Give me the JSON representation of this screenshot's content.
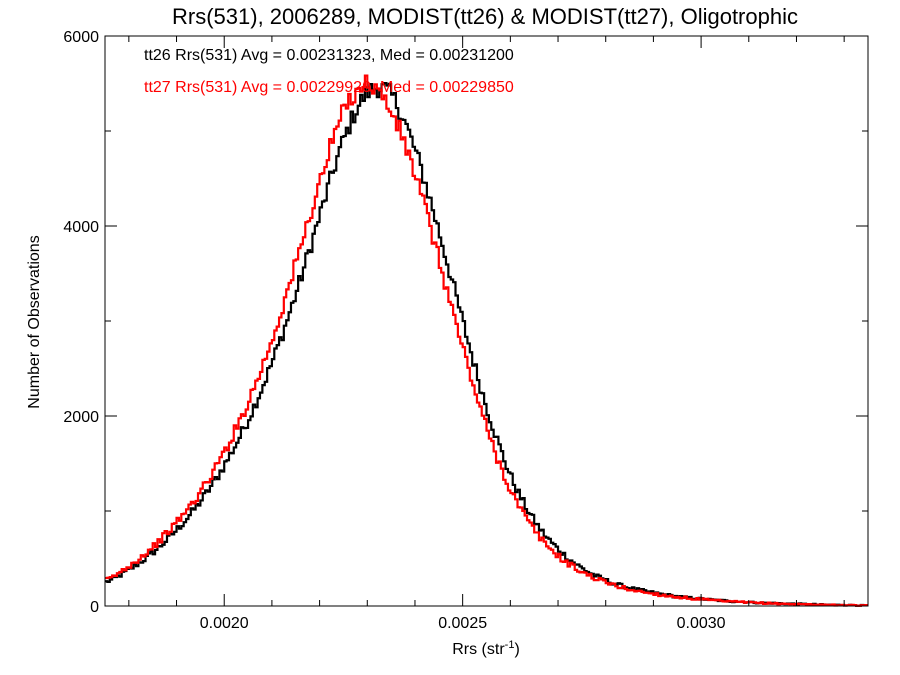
{
  "chart_data": {
    "type": "line",
    "step": true,
    "title": "Rrs(531), 2006289, MODIST(tt26) & MODIST(tt27), Oligotrophic",
    "xlabel": "Rrs (str",
    "xlabel_sup": "-1",
    "xlabel_close": ")",
    "ylabel": "Number of Observations",
    "xlim": [
      0.00175,
      0.00335
    ],
    "ylim": [
      0,
      6000
    ],
    "x_ticks": [
      0.002,
      0.0025,
      0.003
    ],
    "x_tick_labels": [
      "0.0020",
      "0.0025",
      "0.0030"
    ],
    "x_minor_step": 0.0001,
    "y_ticks": [
      0,
      2000,
      4000,
      6000
    ],
    "y_tick_labels": [
      "0",
      "2000",
      "4000",
      "6000"
    ],
    "y_minor_step": 1000,
    "grid": false,
    "annotations": [
      {
        "text": "tt26 Rrs(531) Avg = 0.00231323, Med = 0.00231200",
        "color": "#000000"
      },
      {
        "text": "tt27 Rrs(531) Avg = 0.00229920, Med = 0.00229850",
        "color": "#ff0000"
      }
    ],
    "series": [
      {
        "color": "#000000",
        "x": [
          0.00175,
          0.0018,
          0.00185,
          0.0019,
          0.00195,
          0.002,
          0.00205,
          0.0021,
          0.00215,
          0.0022,
          0.00225,
          0.0023,
          0.00235,
          0.0024,
          0.00245,
          0.0025,
          0.00255,
          0.0026,
          0.00265,
          0.0027,
          0.00275,
          0.0028,
          0.00285,
          0.0029,
          0.00295,
          0.003,
          0.00305,
          0.0031,
          0.00315,
          0.0032,
          0.00325,
          0.0033,
          0.00335
        ],
        "y": [
          250,
          380,
          560,
          800,
          1100,
          1480,
          1960,
          2560,
          3280,
          4100,
          4900,
          5400,
          5380,
          4800,
          3950,
          3000,
          2100,
          1380,
          900,
          600,
          400,
          270,
          190,
          140,
          100,
          75,
          55,
          40,
          30,
          22,
          15,
          10,
          6
        ]
      },
      {
        "color": "#ff0000",
        "x": [
          0.00175,
          0.0018,
          0.00185,
          0.0019,
          0.00195,
          0.002,
          0.00205,
          0.0021,
          0.00215,
          0.0022,
          0.00225,
          0.0023,
          0.00235,
          0.0024,
          0.00245,
          0.0025,
          0.00255,
          0.0026,
          0.00265,
          0.0027,
          0.00275,
          0.0028,
          0.00285,
          0.0029,
          0.00295,
          0.003,
          0.00305,
          0.0031,
          0.00315,
          0.0032,
          0.00325,
          0.0033,
          0.00335
        ],
        "y": [
          270,
          420,
          620,
          880,
          1200,
          1620,
          2150,
          2800,
          3600,
          4450,
          5200,
          5500,
          5200,
          4550,
          3650,
          2720,
          1880,
          1230,
          800,
          530,
          360,
          250,
          175,
          130,
          95,
          70,
          50,
          37,
          27,
          20,
          14,
          9,
          5
        ]
      }
    ]
  }
}
